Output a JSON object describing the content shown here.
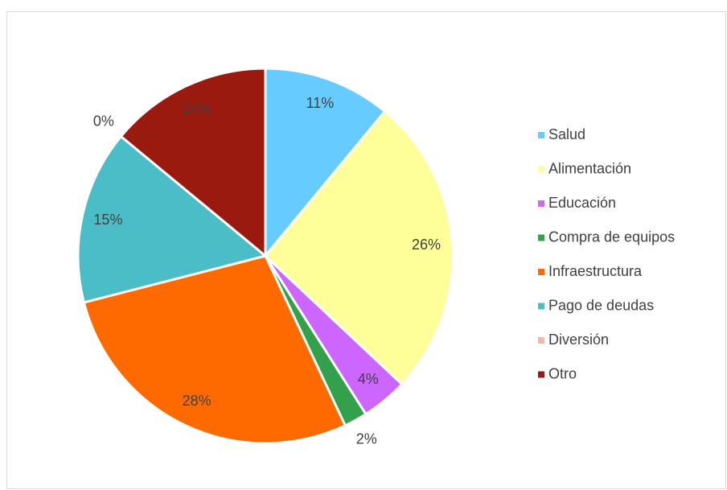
{
  "chart_data": {
    "type": "pie",
    "categories": [
      "Salud",
      "Alimentación",
      "Educación",
      "Compra de equipos",
      "Infraestructura",
      "Pago de deudas",
      "Diversión",
      "Otro"
    ],
    "values": [
      11,
      26,
      4,
      2,
      28,
      15,
      0,
      14
    ],
    "value_labels": [
      "11%",
      "26%",
      "4%",
      "2%",
      "28%",
      "15%",
      "0%",
      "14%"
    ],
    "colors": [
      "#66ccff",
      "#ffff99",
      "#cc66ff",
      "#33a14b",
      "#ff6a00",
      "#4bbdc6",
      "#f2b8b0",
      "#9a1a10"
    ],
    "legend": "right"
  }
}
